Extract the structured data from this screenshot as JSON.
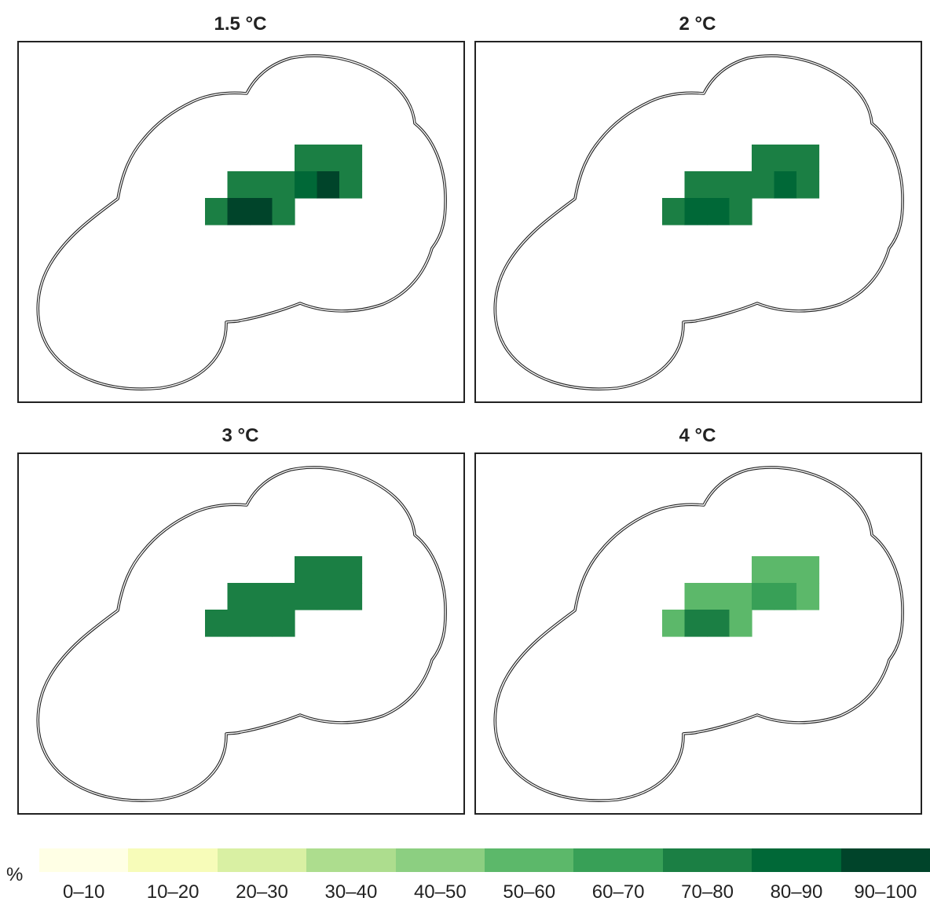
{
  "panels": [
    {
      "title": "1.5 °C",
      "cells": [
        {
          "col": 0,
          "row": 0,
          "cls": "70–80"
        },
        {
          "col": 1,
          "row": 0,
          "cls": "70–80"
        },
        {
          "col": 2,
          "row": 0,
          "cls": "70–80"
        },
        {
          "col": -3,
          "row": 1,
          "cls": "70–80"
        },
        {
          "col": -2,
          "row": 1,
          "cls": "70–80"
        },
        {
          "col": -1,
          "row": 1,
          "cls": "70–80"
        },
        {
          "col": 0,
          "row": 1,
          "cls": "80–90"
        },
        {
          "col": 1,
          "row": 1,
          "cls": "90–100"
        },
        {
          "col": 2,
          "row": 1,
          "cls": "70–80"
        },
        {
          "col": -4,
          "row": 2,
          "cls": "70–80"
        },
        {
          "col": -3,
          "row": 2,
          "cls": "90–100"
        },
        {
          "col": -2,
          "row": 2,
          "cls": "90–100"
        },
        {
          "col": -1,
          "row": 2,
          "cls": "70–80"
        }
      ]
    },
    {
      "title": "2 °C",
      "cells": [
        {
          "col": 0,
          "row": 0,
          "cls": "70–80"
        },
        {
          "col": 1,
          "row": 0,
          "cls": "70–80"
        },
        {
          "col": 2,
          "row": 0,
          "cls": "70–80"
        },
        {
          "col": -3,
          "row": 1,
          "cls": "70–80"
        },
        {
          "col": -2,
          "row": 1,
          "cls": "70–80"
        },
        {
          "col": -1,
          "row": 1,
          "cls": "70–80"
        },
        {
          "col": 0,
          "row": 1,
          "cls": "70–80"
        },
        {
          "col": 1,
          "row": 1,
          "cls": "80–90"
        },
        {
          "col": 2,
          "row": 1,
          "cls": "70–80"
        },
        {
          "col": -4,
          "row": 2,
          "cls": "70–80"
        },
        {
          "col": -3,
          "row": 2,
          "cls": "80–90"
        },
        {
          "col": -2,
          "row": 2,
          "cls": "80–90"
        },
        {
          "col": -1,
          "row": 2,
          "cls": "70–80"
        }
      ]
    },
    {
      "title": "3 °C",
      "cells": [
        {
          "col": 0,
          "row": 0,
          "cls": "70–80"
        },
        {
          "col": 1,
          "row": 0,
          "cls": "70–80"
        },
        {
          "col": 2,
          "row": 0,
          "cls": "70–80"
        },
        {
          "col": -3,
          "row": 1,
          "cls": "70–80"
        },
        {
          "col": -2,
          "row": 1,
          "cls": "70–80"
        },
        {
          "col": -1,
          "row": 1,
          "cls": "70–80"
        },
        {
          "col": 0,
          "row": 1,
          "cls": "70–80"
        },
        {
          "col": 1,
          "row": 1,
          "cls": "70–80"
        },
        {
          "col": 2,
          "row": 1,
          "cls": "70–80"
        },
        {
          "col": -4,
          "row": 2,
          "cls": "70–80"
        },
        {
          "col": -3,
          "row": 2,
          "cls": "70–80"
        },
        {
          "col": -2,
          "row": 2,
          "cls": "70–80"
        },
        {
          "col": -1,
          "row": 2,
          "cls": "70–80"
        }
      ]
    },
    {
      "title": "4 °C",
      "cells": [
        {
          "col": 0,
          "row": 0,
          "cls": "50–60"
        },
        {
          "col": 1,
          "row": 0,
          "cls": "50–60"
        },
        {
          "col": 2,
          "row": 0,
          "cls": "50–60"
        },
        {
          "col": -3,
          "row": 1,
          "cls": "50–60"
        },
        {
          "col": -2,
          "row": 1,
          "cls": "50–60"
        },
        {
          "col": -1,
          "row": 1,
          "cls": "50–60"
        },
        {
          "col": 0,
          "row": 1,
          "cls": "60–70"
        },
        {
          "col": 1,
          "row": 1,
          "cls": "60–70"
        },
        {
          "col": 2,
          "row": 1,
          "cls": "50–60"
        },
        {
          "col": -4,
          "row": 2,
          "cls": "50–60"
        },
        {
          "col": -3,
          "row": 2,
          "cls": "70–80"
        },
        {
          "col": -2,
          "row": 2,
          "cls": "70–80"
        },
        {
          "col": -1,
          "row": 2,
          "cls": "50–60"
        }
      ]
    }
  ],
  "legend": {
    "unit": "%",
    "classes": [
      {
        "label": "0–10",
        "color": "#ffffe5"
      },
      {
        "label": "10–20",
        "color": "#f7fcb9"
      },
      {
        "label": "20–30",
        "color": "#d9f0a3"
      },
      {
        "label": "30–40",
        "color": "#addd8e"
      },
      {
        "label": "40–50",
        "color": "#8ccf81"
      },
      {
        "label": "50–60",
        "color": "#5cb86a"
      },
      {
        "label": "60–70",
        "color": "#38a057"
      },
      {
        "label": "70–80",
        "color": "#1b7f44"
      },
      {
        "label": "80–90",
        "color": "#006837"
      },
      {
        "label": "90–100",
        "color": "#00442a"
      }
    ]
  }
}
